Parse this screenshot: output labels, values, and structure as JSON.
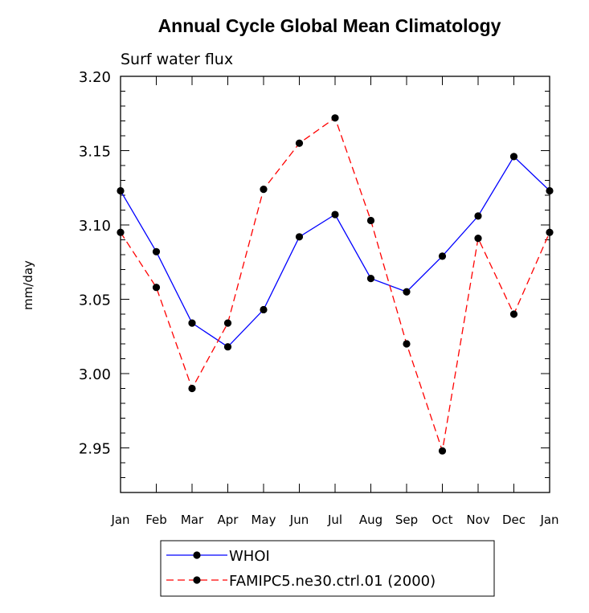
{
  "chart_data": {
    "type": "line",
    "title": "Annual Cycle Global Mean Climatology",
    "subtitle": "Surf water flux",
    "xlabel": "",
    "ylabel": "mm/day",
    "categories": [
      "Jan",
      "Feb",
      "Mar",
      "Apr",
      "May",
      "Jun",
      "Jul",
      "Aug",
      "Sep",
      "Oct",
      "Nov",
      "Dec",
      "Jan"
    ],
    "ylim": [
      2.92,
      3.2
    ],
    "yticks": [
      "2.95",
      "3.00",
      "3.05",
      "3.10",
      "3.15",
      "3.20"
    ],
    "grid": false,
    "legend_position": "bottom",
    "series": [
      {
        "name": "WHOI",
        "color": "#0000ff",
        "dash": "solid",
        "marker": "filled-circle",
        "values": [
          3.123,
          3.082,
          3.034,
          3.018,
          3.043,
          3.092,
          3.107,
          3.064,
          3.055,
          3.079,
          3.106,
          3.146,
          3.123
        ]
      },
      {
        "name": "FAMIPC5.ne30.ctrl.01 (2000)",
        "color": "#ff0000",
        "dash": "dashed",
        "marker": "filled-circle",
        "values": [
          3.095,
          3.058,
          2.99,
          3.034,
          3.124,
          3.155,
          3.172,
          3.103,
          3.02,
          2.948,
          3.091,
          3.04,
          3.095
        ]
      }
    ]
  }
}
